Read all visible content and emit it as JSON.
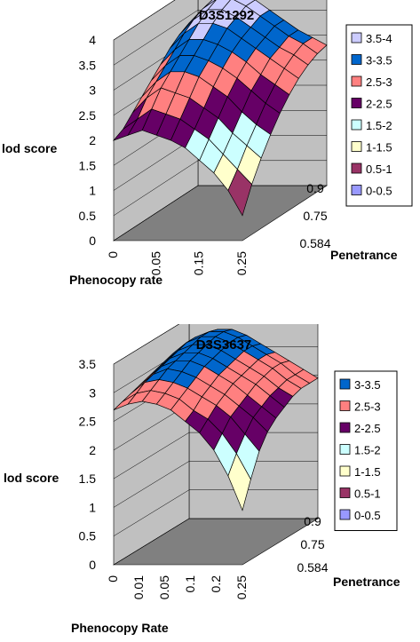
{
  "chart_data": [
    {
      "type": "surface3d",
      "title": "D3S1292",
      "zlabel": "lod score",
      "xlabel": "Phenocopy rate",
      "ylabel": "Penetrance",
      "x_ticks": [
        "0",
        "0.05",
        "0.15",
        "0.25"
      ],
      "y_ticks": [
        "0.584",
        "0.75",
        "0.9"
      ],
      "z_ticks": [
        "0",
        "0.5",
        "1",
        "1.5",
        "2",
        "2.5",
        "3",
        "3.5",
        "4"
      ],
      "zlim": [
        0,
        4
      ],
      "legend": {
        "position": "right",
        "entries": [
          {
            "label": "3.5-4",
            "color": "#ccccff"
          },
          {
            "label": "3-3.5",
            "color": "#0066cc"
          },
          {
            "label": "2.5-3",
            "color": "#ff8080"
          },
          {
            "label": "2-2.5",
            "color": "#660066"
          },
          {
            "label": "1.5-2",
            "color": "#ccffff"
          },
          {
            "label": "1-1.5",
            "color": "#ffffcc"
          },
          {
            "label": "0.5-1",
            "color": "#993366"
          },
          {
            "label": "0-0.5",
            "color": "#9999ff"
          }
        ]
      },
      "surface": {
        "rows": 10,
        "cols": 10,
        "row_axis": "phenocopy rate (0 to 0.25)",
        "col_axis": "penetrance (0.584 to 0.9)",
        "z": [
          [
            2.0,
            2.1,
            2.3,
            2.5,
            2.7,
            2.9,
            3.1,
            3.25,
            3.35,
            3.4
          ],
          [
            2.1,
            2.3,
            2.6,
            2.8,
            3.0,
            3.2,
            3.4,
            3.55,
            3.65,
            3.7
          ],
          [
            2.2,
            2.5,
            2.8,
            3.0,
            3.2,
            3.4,
            3.6,
            3.75,
            3.85,
            3.9
          ],
          [
            2.1,
            2.4,
            2.7,
            3.0,
            3.2,
            3.4,
            3.6,
            3.75,
            3.85,
            3.85
          ],
          [
            2.0,
            2.3,
            2.6,
            2.9,
            3.1,
            3.3,
            3.5,
            3.6,
            3.7,
            3.7
          ],
          [
            1.85,
            2.1,
            2.4,
            2.7,
            2.95,
            3.15,
            3.3,
            3.4,
            3.5,
            3.5
          ],
          [
            1.6,
            1.9,
            2.2,
            2.5,
            2.75,
            2.95,
            3.1,
            3.2,
            3.3,
            3.3
          ],
          [
            1.35,
            1.6,
            1.9,
            2.2,
            2.5,
            2.7,
            2.9,
            3.0,
            3.1,
            3.1
          ],
          [
            1.0,
            1.3,
            1.65,
            1.95,
            2.25,
            2.5,
            2.7,
            2.85,
            2.95,
            2.95
          ],
          [
            0.5,
            1.0,
            1.4,
            1.75,
            2.05,
            2.3,
            2.5,
            2.65,
            2.75,
            2.8
          ]
        ]
      }
    },
    {
      "type": "surface3d",
      "title": "D3S3637",
      "zlabel": "lod score",
      "xlabel": "Phenocopy Rate",
      "ylabel": "Penetrance",
      "x_ticks": [
        "0",
        "0.01",
        "0.05",
        "0.1",
        "0.2",
        "0.25"
      ],
      "y_ticks": [
        "0.584",
        "0.75",
        "0.9"
      ],
      "z_ticks": [
        "0",
        "0.5",
        "1",
        "1.5",
        "2",
        "2.5",
        "3",
        "3.5"
      ],
      "zlim": [
        0,
        3.5
      ],
      "legend": {
        "position": "right",
        "entries": [
          {
            "label": "3-3.5",
            "color": "#0066cc"
          },
          {
            "label": "2.5-3",
            "color": "#ff8080"
          },
          {
            "label": "2-2.5",
            "color": "#660066"
          },
          {
            "label": "1.5-2",
            "color": "#ccffff"
          },
          {
            "label": "1-1.5",
            "color": "#ffffcc"
          },
          {
            "label": "0.5-1",
            "color": "#993366"
          },
          {
            "label": "0-0.5",
            "color": "#9999ff"
          }
        ]
      },
      "surface": {
        "rows": 10,
        "cols": 10,
        "row_axis": "phenocopy rate (0 to 0.25)",
        "col_axis": "penetrance (0.584 to 0.9)",
        "z": [
          [
            2.7,
            2.75,
            2.8,
            2.85,
            2.9,
            2.95,
            3.0,
            3.05,
            3.05,
            3.05
          ],
          [
            2.8,
            2.9,
            3.0,
            3.05,
            3.1,
            3.15,
            3.2,
            3.25,
            3.25,
            3.2
          ],
          [
            2.85,
            2.95,
            3.05,
            3.15,
            3.2,
            3.25,
            3.3,
            3.35,
            3.35,
            3.3
          ],
          [
            2.8,
            2.9,
            3.0,
            3.1,
            3.2,
            3.25,
            3.3,
            3.35,
            3.35,
            3.3
          ],
          [
            2.7,
            2.8,
            2.9,
            3.0,
            3.1,
            3.15,
            3.2,
            3.25,
            3.25,
            3.2
          ],
          [
            2.5,
            2.6,
            2.75,
            2.85,
            2.95,
            3.0,
            3.05,
            3.1,
            3.1,
            3.05
          ],
          [
            2.3,
            2.45,
            2.6,
            2.7,
            2.8,
            2.85,
            2.9,
            2.95,
            2.95,
            2.9
          ],
          [
            2.0,
            2.2,
            2.4,
            2.5,
            2.6,
            2.7,
            2.75,
            2.8,
            2.8,
            2.75
          ],
          [
            1.55,
            1.85,
            2.1,
            2.3,
            2.4,
            2.5,
            2.55,
            2.6,
            2.6,
            2.6
          ],
          [
            0.95,
            1.4,
            1.8,
            2.05,
            2.2,
            2.3,
            2.4,
            2.45,
            2.45,
            2.45
          ]
        ]
      }
    }
  ]
}
